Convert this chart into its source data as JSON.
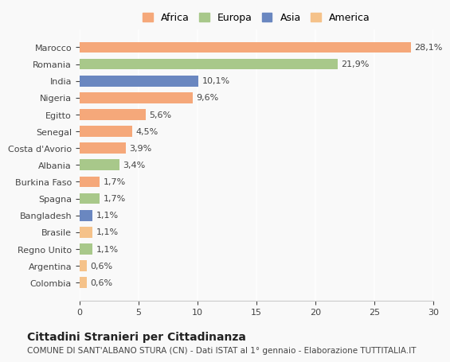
{
  "countries": [
    "Colombia",
    "Argentina",
    "Regno Unito",
    "Brasile",
    "Bangladesh",
    "Spagna",
    "Burkina Faso",
    "Albania",
    "Costa d'Avorio",
    "Senegal",
    "Egitto",
    "Nigeria",
    "India",
    "Romania",
    "Marocco"
  ],
  "values": [
    0.6,
    0.6,
    1.1,
    1.1,
    1.1,
    1.7,
    1.7,
    3.4,
    3.9,
    4.5,
    5.6,
    9.6,
    10.1,
    21.9,
    28.1
  ],
  "labels": [
    "0,6%",
    "0,6%",
    "1,1%",
    "1,1%",
    "1,1%",
    "1,7%",
    "1,7%",
    "3,4%",
    "3,9%",
    "4,5%",
    "5,6%",
    "9,6%",
    "10,1%",
    "21,9%",
    "28,1%"
  ],
  "colors": [
    "#F5C28A",
    "#F5C28A",
    "#A8C88A",
    "#F5C28A",
    "#6A87C0",
    "#A8C88A",
    "#F5A87A",
    "#A8C88A",
    "#F5A87A",
    "#F5A87A",
    "#F5A87A",
    "#F5A87A",
    "#6A87C0",
    "#A8C88A",
    "#F5A87A"
  ],
  "continent_colors": {
    "Africa": "#F5A87A",
    "Europa": "#A8C88A",
    "Asia": "#6A87C0",
    "America": "#F5C28A"
  },
  "title": "Cittadini Stranieri per Cittadinanza",
  "subtitle": "COMUNE DI SANT'ALBANO STURA (CN) - Dati ISTAT al 1° gennaio - Elaborazione TUTTITALIA.IT",
  "xlim": [
    0,
    30
  ],
  "xticks": [
    0,
    5,
    10,
    15,
    20,
    25,
    30
  ],
  "bg_color": "#f9f9f9",
  "bar_height": 0.65
}
